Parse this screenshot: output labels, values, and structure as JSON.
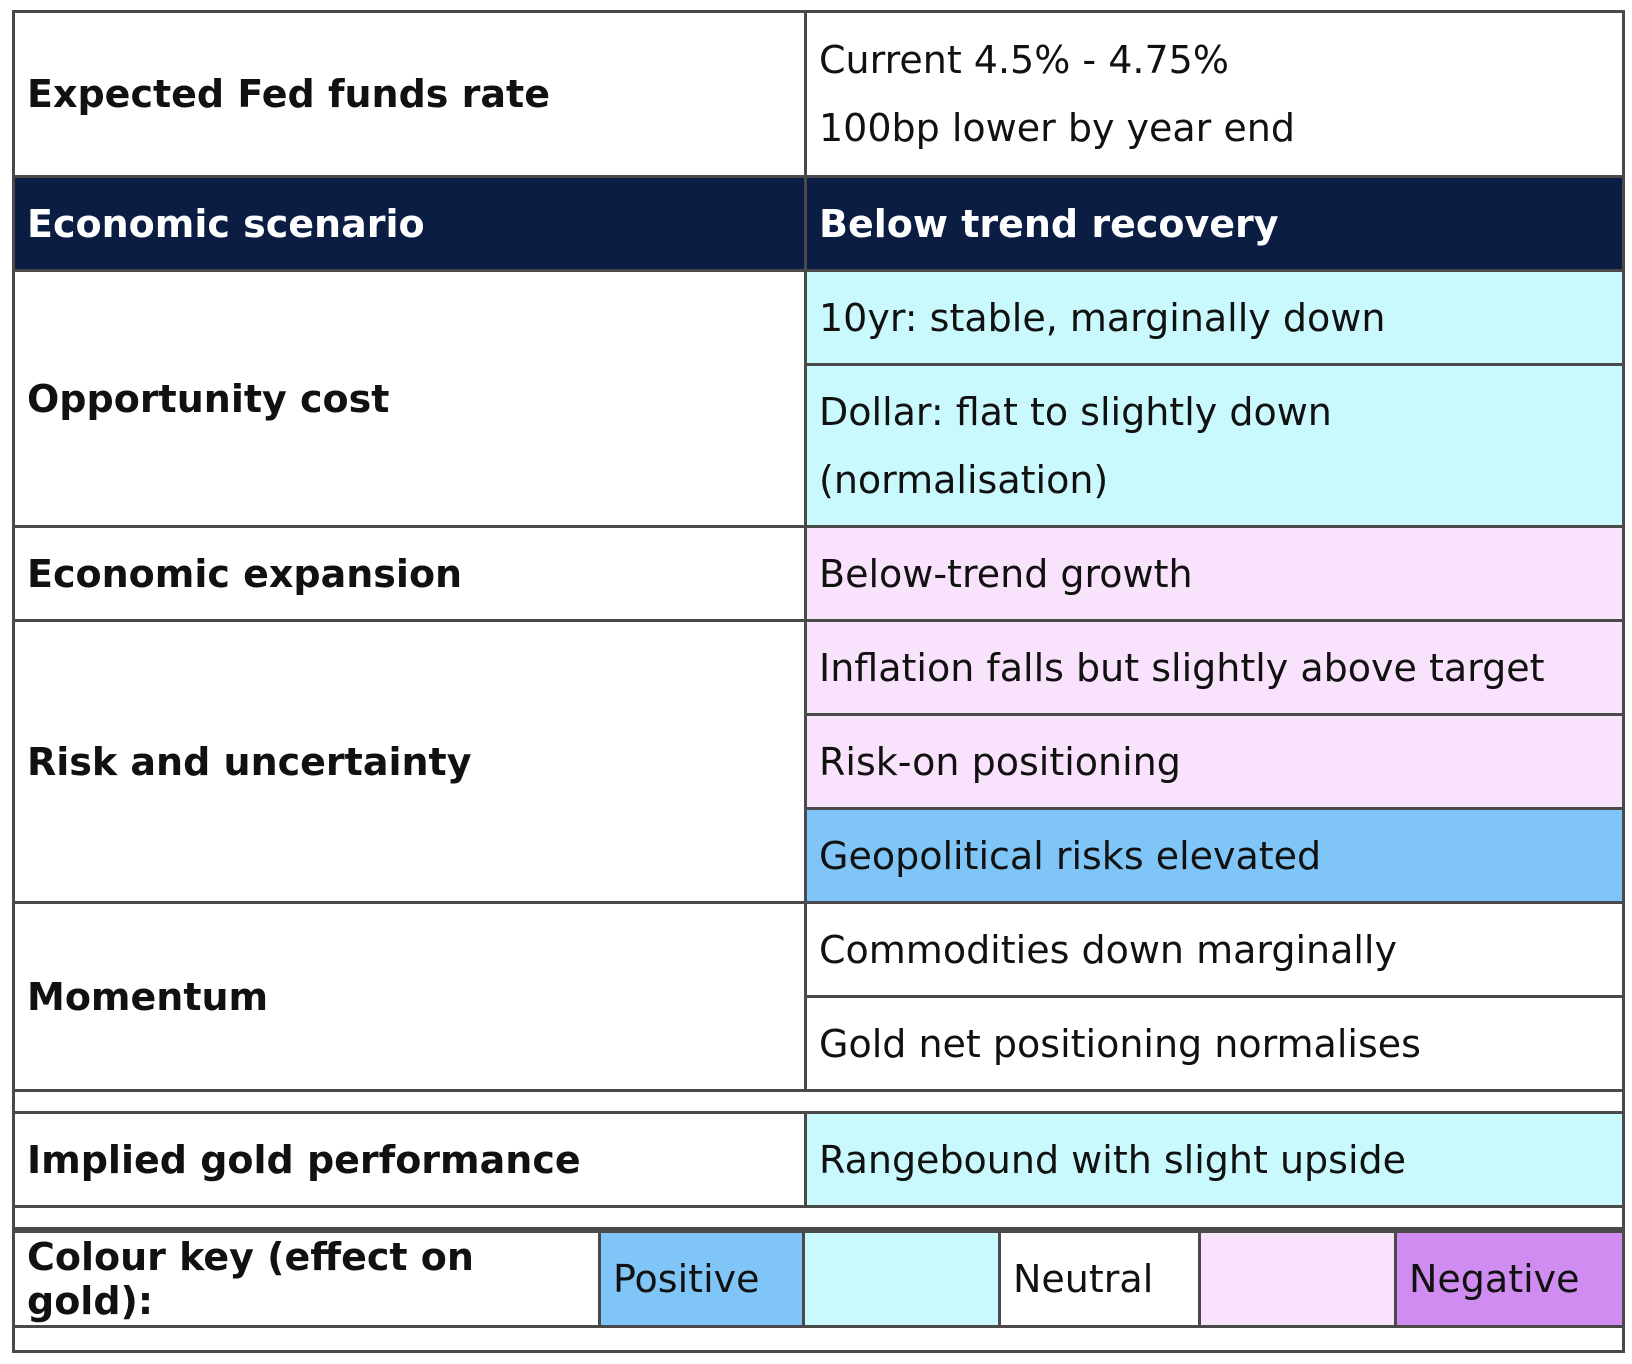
{
  "colors": {
    "header_bg": "#0b1d42",
    "positive": "#80c5f7",
    "slightly_positive": "#c9f9fc",
    "neutral": "#ffffff",
    "slightly_negative": "#f9e2fb",
    "negative": "#d08cf0"
  },
  "fed_rate": {
    "label": "Expected Fed funds rate",
    "line1": "Current 4.5% - 4.75%",
    "line2": "100bp lower by year end"
  },
  "scenario": {
    "label": "Economic scenario",
    "value": "Below trend recovery"
  },
  "opportunity_cost": {
    "label": "Opportunity cost",
    "items": [
      {
        "text": "10yr: stable, marginally down",
        "effect": "slightly_positive"
      },
      {
        "text_line1": "Dollar: flat to slightly down",
        "text_line2": "(normalisation)",
        "effect": "slightly_positive"
      }
    ]
  },
  "economic_expansion": {
    "label": "Economic expansion",
    "items": [
      {
        "text": "Below-trend growth",
        "effect": "slightly_negative"
      }
    ]
  },
  "risk": {
    "label": "Risk and uncertainty",
    "items": [
      {
        "text": "Inflation falls but slightly above target",
        "effect": "slightly_negative"
      },
      {
        "text": "Risk-on positioning",
        "effect": "slightly_negative"
      },
      {
        "text": "Geopolitical risks elevated",
        "effect": "positive"
      }
    ]
  },
  "momentum": {
    "label": "Momentum",
    "items": [
      {
        "text": "Commodities down marginally",
        "effect": "neutral"
      },
      {
        "text": "Gold net positioning normalises",
        "effect": "neutral"
      }
    ]
  },
  "implied": {
    "label": "Implied gold performance",
    "value": "Rangebound with slight upside",
    "effect": "slightly_positive"
  },
  "colour_key": {
    "label": "Colour key (effect on gold):",
    "positive": "Positive",
    "neutral": "Neutral",
    "negative": "Negative"
  }
}
